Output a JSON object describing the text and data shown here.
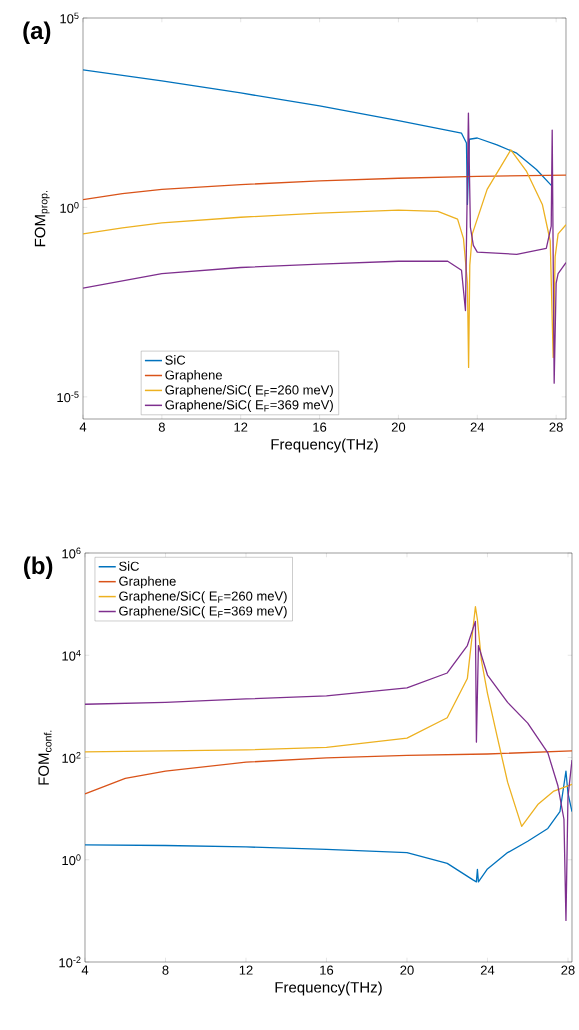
{
  "chart_data": [
    {
      "type": "line",
      "title": "(a)",
      "xlabel": "Frequency(THz)",
      "ylabel": "FOM$_{prop.}$",
      "log": "y",
      "grid": false,
      "legend": "bottom left",
      "marker": "none",
      "line_style": "solid",
      "xlim": [
        4,
        28.5
      ],
      "ylim": [
        2.6e-06,
        100000.0
      ],
      "xticks": [
        4,
        8,
        12,
        16,
        20,
        24,
        28
      ],
      "yticks": [
        {
          "value": 1e-05,
          "label": "10$^{-5}$"
        },
        {
          "value": 1,
          "label": "10$^{0}$"
        },
        {
          "value": 100000.0,
          "label": "10$^{5}$"
        }
      ],
      "series": [
        {
          "name": "SiC",
          "color": "#0072bd",
          "x": [
            4,
            8,
            12,
            16,
            20,
            23.2,
            23.45,
            23.5,
            23.6,
            24,
            25,
            26,
            27,
            27.8
          ],
          "values": [
            4300,
            2200,
            1050,
            480,
            195,
            91,
            50,
            1.2,
            63,
            68,
            45,
            27,
            10,
            3.6
          ]
        },
        {
          "name": "Graphene",
          "color": "#d95319",
          "x": [
            4,
            6,
            8,
            12,
            16,
            20,
            24,
            28.5
          ],
          "values": [
            1.6,
            2.3,
            3.0,
            4.0,
            5.0,
            5.9,
            6.6,
            7.1
          ]
        },
        {
          "name": "Graphene/SiC( E$_{F}$=260 meV)",
          "color": "#edb120",
          "x": [
            4,
            6,
            8,
            12,
            16,
            20,
            22,
            23,
            23.3,
            23.5,
            23.56,
            23.62,
            23.75,
            24.5,
            25.7,
            26.5,
            27.3,
            27.7,
            27.85,
            27.95,
            28.1,
            28.5
          ],
          "values": [
            0.2,
            0.29,
            0.39,
            0.55,
            0.71,
            0.85,
            0.79,
            0.49,
            0.15,
            0.01,
            6e-05,
            0.03,
            0.2,
            3.0,
            33,
            8.9,
            1.2,
            0.13,
            0.00011,
            0.05,
            0.2,
            0.35
          ]
        },
        {
          "name": "Graphene/SiC( E$_{F}$=369 meV)",
          "color": "#7e2f8e",
          "x": [
            4,
            8,
            12,
            16,
            20,
            22.5,
            23.2,
            23.4,
            23.45,
            23.5,
            23.55,
            23.65,
            23.8,
            24,
            26,
            27.5,
            27.75,
            27.8,
            27.9,
            28.0,
            28.1,
            28.5
          ],
          "values": [
            0.0074,
            0.018,
            0.026,
            0.032,
            0.038,
            0.038,
            0.022,
            0.0019,
            null,
            null,
            310,
            0.3,
            0.1,
            0.066,
            0.058,
            0.083,
            0.32,
            110,
            2.3e-05,
            0.01,
            0.018,
            0.035
          ]
        }
      ]
    },
    {
      "type": "line",
      "title": "(b)",
      "xlabel": "Frequency(THz)",
      "ylabel": "FOM$_{conf.}$",
      "log": "y",
      "grid": false,
      "legend": "top left",
      "marker": "none",
      "line_style": "solid",
      "xlim": [
        4,
        28.2
      ],
      "ylim": [
        0.01,
        1000000.0
      ],
      "xticks": [
        4,
        8,
        12,
        16,
        20,
        24,
        28
      ],
      "yticks": [
        {
          "value": 0.01,
          "label": "10$^{-2}$"
        },
        {
          "value": 1,
          "label": "10$^{0}$"
        },
        {
          "value": 100,
          "label": "10$^{2}$"
        },
        {
          "value": 10000.0,
          "label": "10$^{4}$"
        },
        {
          "value": 1000000.0,
          "label": "10$^{6}$"
        }
      ],
      "series": [
        {
          "name": "SiC",
          "color": "#0072bd",
          "x": [
            4,
            8,
            12,
            16,
            20,
            22,
            23.3,
            23.45,
            23.5,
            23.55,
            24,
            25,
            26,
            27,
            27.6,
            27.9,
            28.0,
            28.2
          ],
          "values": [
            1.95,
            1.9,
            1.78,
            1.6,
            1.38,
            0.85,
            0.4,
            0.37,
            0.65,
            0.37,
            0.66,
            1.38,
            2.3,
            4.1,
            8.7,
            54,
            20,
            8.7
          ]
        },
        {
          "name": "Graphene",
          "color": "#d95319",
          "x": [
            4,
            6,
            8,
            12,
            16,
            20,
            24,
            28.2
          ],
          "values": [
            19.5,
            39,
            54,
            81,
            98,
            110,
            117,
            135
          ]
        },
        {
          "name": "Graphene/SiC( E$_{F}$=260 meV)",
          "color": "#edb120",
          "x": [
            4,
            12,
            16,
            20,
            22,
            23,
            23.4,
            23.5,
            23.7,
            24,
            24.5,
            25,
            25.7,
            26.5,
            27.3,
            28,
            28.2
          ],
          "values": [
            129,
            141,
            158,
            240,
            600,
            3500,
            89000,
            50000,
            7900,
            1800,
            240,
            33,
            4.5,
            12,
            22,
            28,
            30
          ]
        },
        {
          "name": "Graphene/SiC( E$_{F}$=369 meV)",
          "color": "#7e2f8e",
          "x": [
            4,
            8,
            12,
            16,
            20,
            22,
            23,
            23.4,
            23.45,
            23.55,
            24,
            25,
            26,
            27,
            27.5,
            27.8,
            27.9,
            28.0,
            28.2
          ],
          "values": [
            1100,
            1200,
            1400,
            1600,
            2300,
            4500,
            15500,
            46000,
            200,
            15500,
            4100,
            1200,
            470,
            123,
            28,
            6.2,
            0.065,
            17,
            89
          ]
        }
      ]
    }
  ]
}
